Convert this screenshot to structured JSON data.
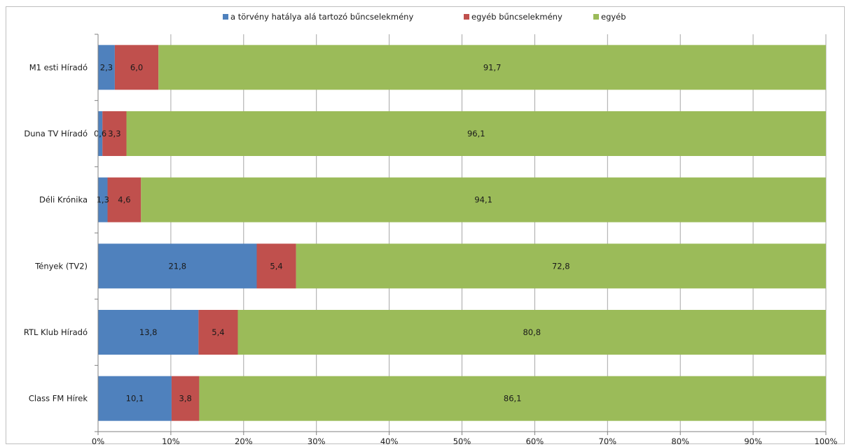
{
  "chart_data": {
    "type": "bar",
    "orientation": "horizontal",
    "stacked": true,
    "categories": [
      "M1 esti Híradó",
      "Duna TV Híradó",
      "Déli Krónika",
      "Tények (TV2)",
      "RTL Klub Híradó",
      "Class FM Hírek"
    ],
    "series": [
      {
        "name": "a törvény hatálya alá tartozó bűncselekmény",
        "color": "#4f81bd",
        "values": [
          2.3,
          0.6,
          1.3,
          21.8,
          13.8,
          10.1
        ],
        "labels": [
          "2,3",
          "0,6",
          "1,3",
          "21,8",
          "13,8",
          "10,1"
        ]
      },
      {
        "name": "egyéb bűncselekmény",
        "color": "#c0504d",
        "values": [
          6.0,
          3.3,
          4.6,
          5.4,
          5.4,
          3.8
        ],
        "labels": [
          "6,0",
          "3,3",
          "4,6",
          "5,4",
          "5,4",
          "3,8"
        ]
      },
      {
        "name": "egyéb",
        "color": "#9bbb59",
        "values": [
          91.7,
          96.1,
          94.1,
          72.8,
          80.8,
          86.1
        ],
        "labels": [
          "91,7",
          "96,1",
          "94,1",
          "72,8",
          "80,8",
          "86,1"
        ]
      }
    ],
    "x_ticks": [
      "0%",
      "10%",
      "20%",
      "30%",
      "40%",
      "50%",
      "60%",
      "70%",
      "80%",
      "90%",
      "100%"
    ],
    "xlim": [
      0,
      100
    ],
    "grid": true,
    "legend_position": "top"
  }
}
